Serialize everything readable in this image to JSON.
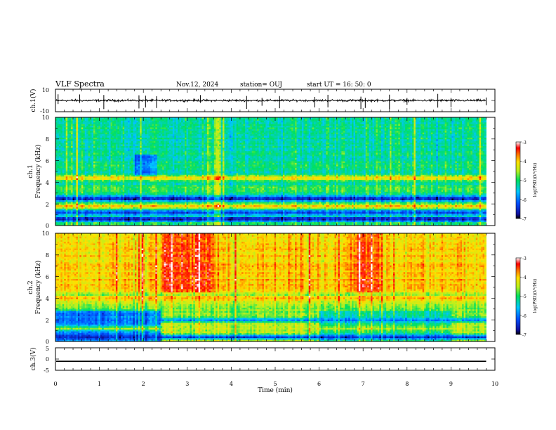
{
  "header": {
    "title": "VLF Spectra",
    "date": "Nov.12, 2024",
    "station": "station= OUJ",
    "start": "start  UT =   16: 50: 0"
  },
  "chart_data": [
    {
      "type": "line",
      "name": "ch1-waveform",
      "ylabel": "ch.1(V)",
      "ylim": [
        -10,
        10
      ],
      "y_ticks": [
        "10",
        "-10"
      ],
      "xlim": [
        0,
        10
      ],
      "baseline": 0,
      "data_end_min": 9.8
    },
    {
      "type": "heatmap",
      "name": "ch1-spectrogram",
      "ylabel_channel": "ch.1",
      "ylabel": "Frequency (kHz)",
      "ylim": [
        0,
        10
      ],
      "y_ticks": [
        "0",
        "2",
        "4",
        "6",
        "8",
        "10"
      ],
      "xlim": [
        0,
        10
      ],
      "data_end_min": 9.8,
      "colorbar": {
        "label": "log(PSD)(V²/Hz)",
        "range": [
          -7,
          -3
        ],
        "ticks": [
          "-3",
          "-4",
          "-5",
          "-6",
          "-7"
        ]
      },
      "bands": [
        {
          "f": 4.4,
          "level": -4.0
        },
        {
          "f": 3.4,
          "level": -4.8
        },
        {
          "f": 2.5,
          "level": -6.8
        },
        {
          "f": 1.8,
          "level": -4.0
        },
        {
          "f": 1.2,
          "level": -6.5
        },
        {
          "f": 0.6,
          "level": -6.8
        }
      ]
    },
    {
      "type": "heatmap",
      "name": "ch2-spectrogram",
      "ylabel_channel": "ch.2",
      "ylabel": "Frequency (kHz)",
      "ylim": [
        0,
        10
      ],
      "y_ticks": [
        "0",
        "2",
        "4",
        "6",
        "8",
        "10"
      ],
      "xlim": [
        0,
        10
      ],
      "data_end_min": 9.8,
      "colorbar": {
        "label": "log(PSD)(V²/Hz)",
        "range": [
          -7,
          -3
        ],
        "ticks": [
          "-3",
          "-4",
          "-5",
          "-6",
          "-7"
        ]
      },
      "bands": [
        {
          "f": 4.0,
          "level": -3.8
        },
        {
          "f": 3.0,
          "level": -4.8
        },
        {
          "f": 2.0,
          "level": -6.0
        },
        {
          "f": 1.2,
          "level": -4.5
        },
        {
          "f": 0.4,
          "level": -6.5
        }
      ]
    },
    {
      "type": "line",
      "name": "ch3-trace",
      "ylabel": "ch.3(V)",
      "ylim": [
        -5,
        5
      ],
      "y_ticks": [
        "5",
        "0",
        "-5"
      ],
      "xlim": [
        0,
        10
      ],
      "baseline": -1,
      "data_end_min": 9.8
    }
  ],
  "xaxis": {
    "label": "Time (min)",
    "ticks": [
      "0",
      "1",
      "2",
      "3",
      "4",
      "5",
      "6",
      "7",
      "8",
      "9",
      "10"
    ]
  }
}
